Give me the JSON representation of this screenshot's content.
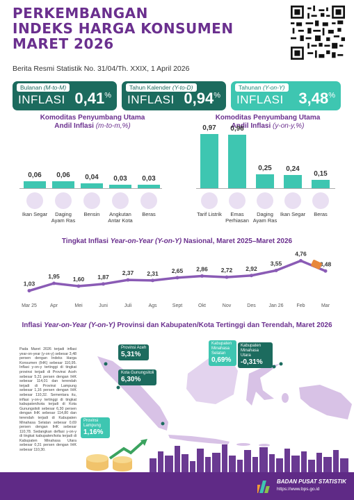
{
  "header": {
    "title_lines": [
      "PERKEMBANGAN",
      "INDEKS HARGA KONSUMEN",
      "MARET 2026"
    ],
    "subtitle": "Berita Resmi Statistik No. 31/04/Th. XXIX, 1 April 2026"
  },
  "cards": [
    {
      "label_prefix": "Bulanan",
      "label_code": "(M-to-M)",
      "word": "INFLASI",
      "value": "0,41",
      "unit": "%"
    },
    {
      "label_prefix": "Tahun Kalender",
      "label_code": "(Y-to-D)",
      "word": "INFLASI",
      "value": "0,94",
      "unit": "%"
    },
    {
      "label_prefix": "Tahunan",
      "label_code": "(Y-on-Y)",
      "word": "INFLASI",
      "value": "3,48",
      "unit": "%"
    }
  ],
  "mtm": {
    "heading1": "Komoditas Penyumbang Utama",
    "heading2_a": "Andil Inflasi ",
    "heading2_b": "(m-to-m,%)",
    "items": [
      {
        "label": "Ikan Segar",
        "value": "0,06",
        "num": 0.06,
        "icon": "fish-icon"
      },
      {
        "label": "Daging Ayam Ras",
        "value": "0,06",
        "num": 0.06,
        "icon": "chicken-icon"
      },
      {
        "label": "Bensin",
        "value": "0,04",
        "num": 0.04,
        "icon": "fuel-icon"
      },
      {
        "label": "Angkutan Antar Kota",
        "value": "0,03",
        "num": 0.03,
        "icon": "bus-icon"
      },
      {
        "label": "Beras",
        "value": "0,03",
        "num": 0.03,
        "icon": "rice-icon"
      }
    ]
  },
  "yoy": {
    "heading1": "Komoditas Penyumbang Utama",
    "heading2_a": "Andil Inflasi ",
    "heading2_b": "(y-on-y,%)",
    "items": [
      {
        "label": "Tarif Listrik",
        "value": "0,97",
        "num": 0.97,
        "icon": "electricity-icon"
      },
      {
        "label": "Emas Perhiasan",
        "value": "0,96",
        "num": 0.96,
        "icon": "gold-icon"
      },
      {
        "label": "Daging Ayam Ras",
        "value": "0,25",
        "num": 0.25,
        "icon": "chicken-icon"
      },
      {
        "label": "Ikan Segar",
        "value": "0,24",
        "num": 0.24,
        "icon": "fish-icon"
      },
      {
        "label": "Beras",
        "value": "0,15",
        "num": 0.15,
        "icon": "rice-icon"
      }
    ]
  },
  "trend": {
    "title_a": "Tingkat Inflasi ",
    "title_b": "Year-on-Year (Y-on-Y)",
    "title_c": " Nasional, Maret 2025–Maret 2026"
  },
  "chart_data": {
    "type": "line",
    "title": "Tingkat Inflasi Year-on-Year (Y-on-Y) Nasional, Maret 2025–Maret 2026",
    "x": [
      "Mar 25",
      "Apr",
      "Mei",
      "Juni",
      "Juli",
      "Ags",
      "Sept",
      "Okt",
      "Nov",
      "Des",
      "Jan 26",
      "Feb",
      "Mar"
    ],
    "values": [
      1.03,
      1.95,
      1.6,
      1.87,
      2.37,
      2.31,
      2.65,
      2.86,
      2.72,
      2.92,
      3.55,
      4.76,
      3.48
    ],
    "labels": [
      "1,03",
      "1,95",
      "1,60",
      "1,87",
      "2,37",
      "2,31",
      "2,65",
      "2,86",
      "2,72",
      "2,92",
      "3,55",
      "4,76",
      "3,48"
    ]
  },
  "map": {
    "title_a": "Inflasi ",
    "title_b": "Year-on-Year (Y-on-Y)",
    "title_c": " Provinsi dan Kabupaten/Kota Tertinggi dan Terendah, Maret 2026",
    "story": "Pada Maret 2026 terjadi inflasi year-on-year (y-on-y) sebesar 3,48 persen dengan Indeks Harga Konsumen (IHK) sebesar 110,95. Inflasi y-on-y tertinggi di tingkat provinsi terjadi di Provinsi Aceh sebesar 5,31 persen dengan IHK sebesar 114,01 dan terendah terjadi di Provinsi Lampung sebesar 1,16 persen dengan IHK sebesar 110,32. Sementara itu, inflasi y-on-y tertinggi di tingkat kabupaten/kota terjadi di Kota Gunungsitoli sebesar 6,30 persen dengan IHK sebesar 114,80 dan terendah terjadi di Kabupaten Minahasa Selatan sebesar 0,69 persen dengan IHK sebesar 110,78. Sedangkan deflasi y-on-y di tingkat kabupaten/kota terjadi di Kabupaten Minahasa Utara sebesar 0,31 persen dengan IHK sebesar 110,30.",
    "labels": [
      {
        "name": "Provinsi Aceh",
        "value": "5,31%"
      },
      {
        "name": "Kota Gunungsitoli",
        "value": "6,30%"
      },
      {
        "name": "Provinsi Lampung",
        "value": "1,16%"
      },
      {
        "name": "Kabupaten Minahasa Selatan",
        "value": "0,69%"
      },
      {
        "name": "Kabupaten Minahasa Utara",
        "value": "-0,31%"
      }
    ]
  },
  "footer": {
    "org": "BADAN PUSAT STATISTIK",
    "url": "https://www.bps.go.id"
  },
  "colors": {
    "purple": "#6a2f8e",
    "dark_teal": "#1c6b5e",
    "teal": "#3ec6b1",
    "footer": "#5f2a86"
  }
}
